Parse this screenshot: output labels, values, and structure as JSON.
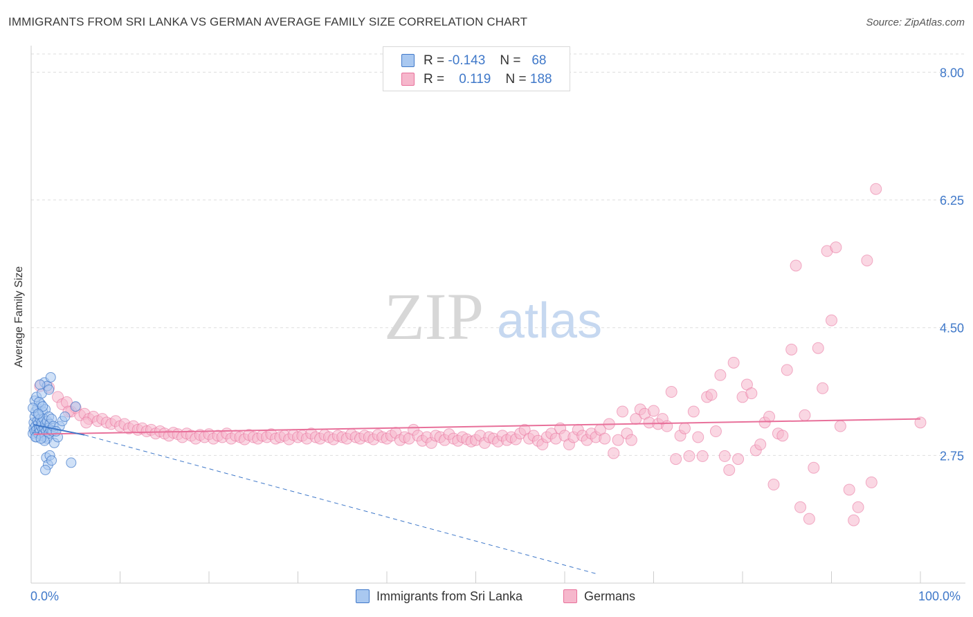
{
  "header": {
    "title": "IMMIGRANTS FROM SRI LANKA VS GERMAN AVERAGE FAMILY SIZE CORRELATION CHART",
    "source": "Source: ZipAtlas.com"
  },
  "watermark": {
    "part1": "ZIP",
    "part2": "atlas"
  },
  "legend": {
    "rows": [
      {
        "r_label": "R =",
        "r_value": "-0.143",
        "n_label": "N =",
        "n_value": "68"
      },
      {
        "r_label": "R =",
        "r_value": "0.119",
        "n_label": "N =",
        "n_value": "188"
      }
    ]
  },
  "bottom_legend": {
    "series1": "Immigrants from Sri Lanka",
    "series2": "Germans"
  },
  "colors": {
    "blue": "#3f78c9",
    "blue_fill": "#a9c8f0",
    "pink": "#e8709a",
    "pink_fill": "#f6b7cc",
    "grid": "#dddddd"
  },
  "chart_data": {
    "type": "scatter",
    "title": "IMMIGRANTS FROM SRI LANKA VS GERMAN AVERAGE FAMILY SIZE CORRELATION CHART",
    "xlabel": "",
    "ylabel": "Average Family Size",
    "x_tick_labels": [
      "0.0%",
      "100.0%"
    ],
    "y_ticks": [
      2.75,
      4.5,
      6.25,
      8.0
    ],
    "y_tick_labels": [
      "2.75",
      "4.50",
      "6.25",
      "8.00"
    ],
    "xlim": [
      0,
      100
    ],
    "ylim": [
      1.0,
      8.25
    ],
    "series": [
      {
        "name": "Immigrants from Sri Lanka",
        "r": -0.143,
        "n": 68,
        "trend": {
          "x": [
            0.3,
            6.0
          ],
          "y": [
            3.17,
            3.03
          ]
        },
        "trend_extension": {
          "x": [
            6.0,
            63.5
          ],
          "y": [
            3.03,
            1.13
          ]
        },
        "points": [
          [
            0.2,
            3.05
          ],
          [
            0.3,
            3.12
          ],
          [
            0.3,
            3.2
          ],
          [
            0.4,
            3.08
          ],
          [
            0.4,
            3.28
          ],
          [
            0.5,
            3.15
          ],
          [
            0.5,
            3.35
          ],
          [
            0.6,
            3.1
          ],
          [
            0.6,
            3.0
          ],
          [
            0.7,
            3.22
          ],
          [
            0.7,
            3.4
          ],
          [
            0.8,
            3.05
          ],
          [
            0.8,
            3.18
          ],
          [
            0.9,
            3.12
          ],
          [
            0.9,
            3.3
          ],
          [
            1.0,
            3.25
          ],
          [
            1.0,
            3.08
          ],
          [
            1.1,
            3.15
          ],
          [
            1.1,
            3.45
          ],
          [
            1.2,
            3.02
          ],
          [
            1.2,
            3.2
          ],
          [
            1.3,
            3.1
          ],
          [
            1.3,
            3.35
          ],
          [
            1.4,
            3.05
          ],
          [
            1.4,
            3.25
          ],
          [
            1.5,
            3.12
          ],
          [
            1.5,
            3.0
          ],
          [
            1.6,
            3.18
          ],
          [
            1.6,
            3.38
          ],
          [
            1.7,
            3.08
          ],
          [
            1.8,
            3.22
          ],
          [
            1.8,
            2.98
          ],
          [
            1.9,
            3.12
          ],
          [
            2.0,
            3.28
          ],
          [
            2.0,
            3.05
          ],
          [
            2.1,
            3.18
          ],
          [
            2.2,
            3.1
          ],
          [
            2.3,
            3.25
          ],
          [
            2.4,
            3.08
          ],
          [
            2.5,
            3.15
          ],
          [
            0.4,
            3.5
          ],
          [
            0.6,
            3.55
          ],
          [
            0.9,
            3.48
          ],
          [
            1.2,
            3.6
          ],
          [
            1.5,
            3.75
          ],
          [
            1.8,
            3.7
          ],
          [
            2.0,
            3.65
          ],
          [
            2.2,
            3.82
          ],
          [
            1.0,
            3.72
          ],
          [
            1.3,
            3.42
          ],
          [
            1.5,
            2.95
          ],
          [
            1.7,
            2.72
          ],
          [
            1.9,
            2.62
          ],
          [
            1.6,
            2.55
          ],
          [
            2.1,
            2.75
          ],
          [
            2.3,
            2.68
          ],
          [
            4.5,
            2.65
          ],
          [
            2.6,
            2.92
          ],
          [
            3.0,
            3.0
          ],
          [
            3.2,
            3.15
          ],
          [
            3.5,
            3.22
          ],
          [
            2.8,
            3.08
          ],
          [
            3.8,
            3.28
          ],
          [
            5.0,
            3.42
          ],
          [
            0.2,
            3.4
          ],
          [
            0.5,
            3.0
          ],
          [
            0.8,
            3.32
          ],
          [
            1.1,
            2.98
          ]
        ]
      },
      {
        "name": "Germans",
        "r": 0.119,
        "n": 188,
        "trend": {
          "x": [
            0.3,
            100.0
          ],
          "y": [
            3.04,
            3.25
          ]
        },
        "points": [
          [
            1.0,
            3.7
          ],
          [
            2.0,
            3.68
          ],
          [
            3.0,
            3.55
          ],
          [
            3.5,
            3.45
          ],
          [
            4.0,
            3.48
          ],
          [
            4.5,
            3.35
          ],
          [
            5.0,
            3.4
          ],
          [
            5.5,
            3.3
          ],
          [
            6.0,
            3.32
          ],
          [
            6.5,
            3.25
          ],
          [
            7.0,
            3.28
          ],
          [
            7.5,
            3.22
          ],
          [
            8.0,
            3.25
          ],
          [
            8.5,
            3.2
          ],
          [
            9.0,
            3.18
          ],
          [
            9.5,
            3.22
          ],
          [
            10.0,
            3.15
          ],
          [
            10.5,
            3.18
          ],
          [
            11.0,
            3.12
          ],
          [
            11.5,
            3.15
          ],
          [
            12.0,
            3.1
          ],
          [
            12.5,
            3.12
          ],
          [
            13.0,
            3.08
          ],
          [
            13.5,
            3.1
          ],
          [
            14.0,
            3.05
          ],
          [
            14.5,
            3.08
          ],
          [
            15.0,
            3.05
          ],
          [
            15.5,
            3.02
          ],
          [
            16.0,
            3.06
          ],
          [
            16.5,
            3.04
          ],
          [
            17.0,
            3.0
          ],
          [
            17.5,
            3.05
          ],
          [
            18.0,
            3.02
          ],
          [
            18.5,
            2.98
          ],
          [
            19.0,
            3.03
          ],
          [
            19.5,
            3.0
          ],
          [
            20.0,
            3.04
          ],
          [
            20.5,
            2.98
          ],
          [
            21.0,
            3.02
          ],
          [
            21.5,
            3.0
          ],
          [
            22.0,
            3.05
          ],
          [
            22.5,
            2.98
          ],
          [
            23.0,
            3.02
          ],
          [
            23.5,
            3.0
          ],
          [
            24.0,
            2.97
          ],
          [
            24.5,
            3.03
          ],
          [
            25.0,
            3.0
          ],
          [
            25.5,
            2.98
          ],
          [
            26.0,
            3.02
          ],
          [
            26.5,
            3.0
          ],
          [
            27.0,
            3.04
          ],
          [
            27.5,
            2.98
          ],
          [
            28.0,
            3.0
          ],
          [
            28.5,
            3.02
          ],
          [
            29.0,
            2.97
          ],
          [
            29.5,
            3.03
          ],
          [
            30.0,
            3.0
          ],
          [
            30.5,
            3.02
          ],
          [
            31.0,
            2.98
          ],
          [
            31.5,
            3.05
          ],
          [
            32.0,
            3.0
          ],
          [
            32.5,
            2.98
          ],
          [
            33.0,
            3.03
          ],
          [
            33.5,
            3.0
          ],
          [
            34.0,
            2.97
          ],
          [
            34.5,
            3.02
          ],
          [
            35.0,
            3.0
          ],
          [
            35.5,
            2.98
          ],
          [
            36.0,
            3.04
          ],
          [
            36.5,
            3.0
          ],
          [
            37.0,
            2.98
          ],
          [
            37.5,
            3.02
          ],
          [
            38.0,
            3.0
          ],
          [
            38.5,
            2.97
          ],
          [
            39.0,
            3.03
          ],
          [
            39.5,
            3.0
          ],
          [
            40.0,
            2.98
          ],
          [
            40.5,
            3.02
          ],
          [
            41.0,
            3.06
          ],
          [
            41.5,
            2.96
          ],
          [
            42.0,
            3.0
          ],
          [
            42.5,
            2.98
          ],
          [
            43.0,
            3.1
          ],
          [
            43.5,
            3.02
          ],
          [
            44.0,
            2.95
          ],
          [
            44.5,
            3.0
          ],
          [
            45.0,
            2.92
          ],
          [
            45.5,
            3.02
          ],
          [
            46.0,
            3.0
          ],
          [
            46.5,
            2.96
          ],
          [
            47.0,
            3.04
          ],
          [
            47.5,
            2.98
          ],
          [
            48.0,
            2.95
          ],
          [
            48.5,
            3.0
          ],
          [
            49.0,
            2.97
          ],
          [
            49.5,
            2.94
          ],
          [
            50.0,
            2.96
          ],
          [
            50.5,
            3.02
          ],
          [
            51.0,
            2.92
          ],
          [
            51.5,
            3.0
          ],
          [
            52.0,
            2.98
          ],
          [
            52.5,
            2.94
          ],
          [
            53.0,
            3.02
          ],
          [
            53.5,
            2.96
          ],
          [
            54.0,
            3.0
          ],
          [
            54.5,
            2.97
          ],
          [
            55.0,
            3.05
          ],
          [
            55.5,
            3.1
          ],
          [
            56.0,
            2.98
          ],
          [
            56.5,
            3.02
          ],
          [
            57.0,
            2.95
          ],
          [
            57.5,
            2.9
          ],
          [
            58.0,
            3.0
          ],
          [
            58.5,
            3.05
          ],
          [
            59.0,
            2.98
          ],
          [
            59.5,
            3.12
          ],
          [
            60.0,
            3.02
          ],
          [
            60.5,
            2.9
          ],
          [
            61.0,
            3.0
          ],
          [
            61.5,
            3.1
          ],
          [
            62.0,
            3.02
          ],
          [
            62.5,
            2.96
          ],
          [
            63.0,
            3.05
          ],
          [
            63.5,
            3.0
          ],
          [
            64.0,
            3.1
          ],
          [
            64.5,
            2.98
          ],
          [
            65.0,
            3.18
          ],
          [
            65.5,
            2.78
          ],
          [
            66.0,
            2.96
          ],
          [
            66.5,
            3.35
          ],
          [
            67.0,
            3.05
          ],
          [
            67.5,
            2.96
          ],
          [
            68.0,
            3.25
          ],
          [
            68.5,
            3.38
          ],
          [
            69.0,
            3.32
          ],
          [
            69.5,
            3.2
          ],
          [
            70.0,
            3.36
          ],
          [
            70.5,
            3.18
          ],
          [
            71.0,
            3.25
          ],
          [
            71.5,
            3.15
          ],
          [
            72.0,
            3.62
          ],
          [
            72.5,
            2.7
          ],
          [
            73.0,
            3.02
          ],
          [
            73.5,
            3.12
          ],
          [
            74.0,
            2.74
          ],
          [
            74.5,
            3.35
          ],
          [
            75.0,
            3.0
          ],
          [
            75.5,
            2.74
          ],
          [
            76.0,
            3.55
          ],
          [
            76.5,
            3.58
          ],
          [
            77.0,
            3.08
          ],
          [
            77.5,
            3.85
          ],
          [
            78.0,
            2.74
          ],
          [
            78.5,
            2.55
          ],
          [
            79.0,
            4.02
          ],
          [
            79.5,
            2.7
          ],
          [
            80.0,
            3.55
          ],
          [
            80.5,
            3.72
          ],
          [
            81.0,
            3.6
          ],
          [
            81.5,
            2.82
          ],
          [
            82.0,
            2.9
          ],
          [
            82.5,
            3.2
          ],
          [
            83.0,
            3.28
          ],
          [
            83.5,
            2.35
          ],
          [
            84.0,
            3.05
          ],
          [
            84.5,
            3.02
          ],
          [
            85.0,
            3.92
          ],
          [
            85.5,
            4.2
          ],
          [
            86.0,
            5.35
          ],
          [
            86.5,
            2.04
          ],
          [
            87.0,
            3.3
          ],
          [
            87.5,
            1.88
          ],
          [
            88.0,
            2.58
          ],
          [
            88.5,
            4.22
          ],
          [
            89.0,
            3.67
          ],
          [
            89.5,
            5.55
          ],
          [
            90.0,
            4.6
          ],
          [
            90.5,
            5.6
          ],
          [
            91.0,
            3.15
          ],
          [
            92.0,
            2.28
          ],
          [
            92.5,
            1.86
          ],
          [
            93.0,
            2.04
          ],
          [
            94.0,
            5.42
          ],
          [
            94.5,
            2.38
          ],
          [
            95.0,
            6.4
          ],
          [
            100.0,
            3.2
          ],
          [
            4.2,
            3.35
          ],
          [
            6.2,
            3.2
          ]
        ]
      }
    ]
  }
}
